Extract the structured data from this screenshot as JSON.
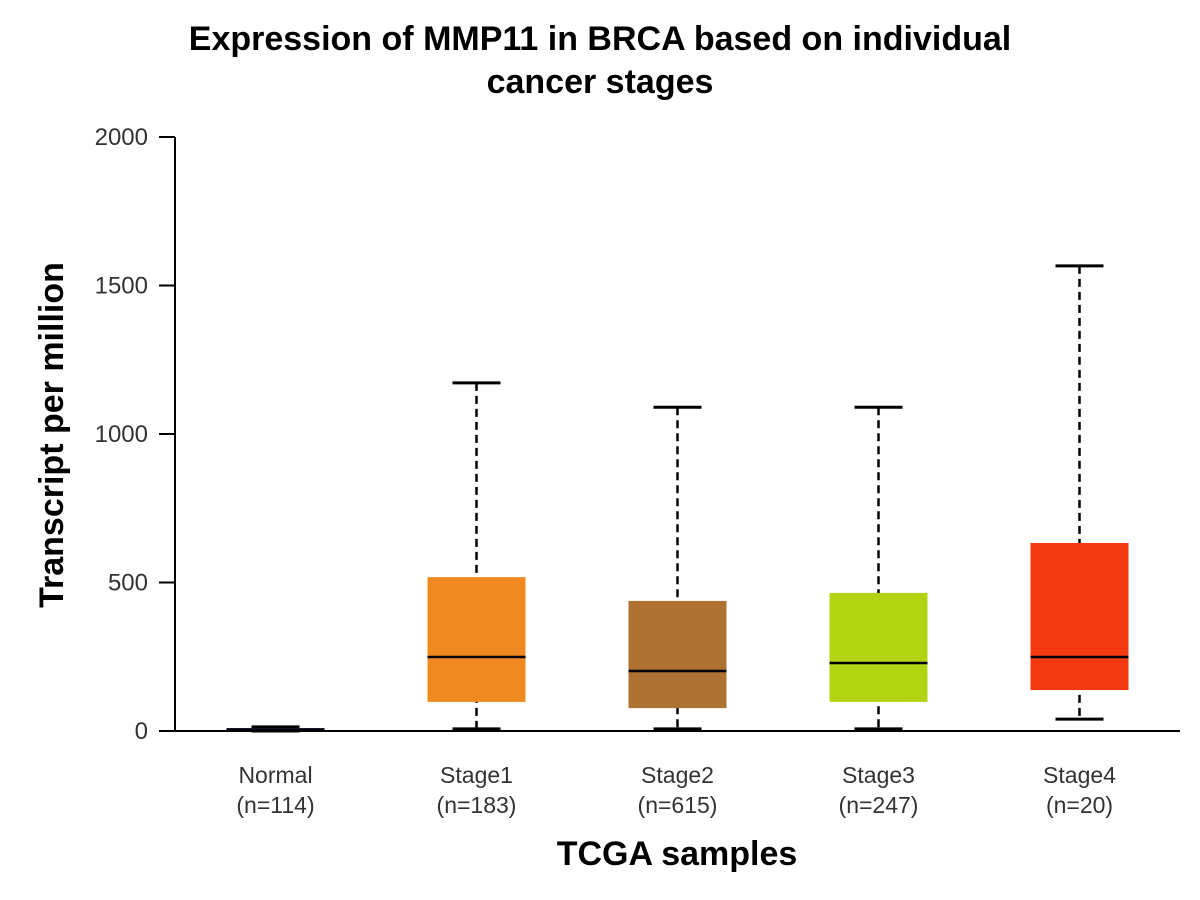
{
  "chart_data": {
    "type": "box",
    "title_lines": [
      "Expression of MMP11 in BRCA based on individual",
      "cancer stages"
    ],
    "xlabel": "TCGA samples",
    "ylabel": "Transcript per million",
    "ylim": [
      0,
      2000
    ],
    "yticks": [
      "0",
      "500",
      "1000",
      "1500",
      "2000"
    ],
    "ytick_values": [
      0,
      500,
      1000,
      1500,
      2000
    ],
    "groups": [
      {
        "name": "Normal",
        "n": "(n=114)",
        "color": "#4b58c8",
        "min": 0,
        "q1": 0,
        "median": 5,
        "q3": 10,
        "max": 14
      },
      {
        "name": "Stage1",
        "n": "(n=183)",
        "color": "#f08a20",
        "min": 7,
        "q1": 98,
        "median": 249,
        "q3": 518,
        "max": 1172
      },
      {
        "name": "Stage2",
        "n": "(n=615)",
        "color": "#ae7232",
        "min": 7,
        "q1": 77,
        "median": 202,
        "q3": 438,
        "max": 1090
      },
      {
        "name": "Stage3",
        "n": "(n=247)",
        "color": "#b2d413",
        "min": 7,
        "q1": 98,
        "median": 229,
        "q3": 465,
        "max": 1090
      },
      {
        "name": "Stage4",
        "n": "(n=20)",
        "color": "#f43a10",
        "min": 40,
        "q1": 138,
        "median": 249,
        "q3": 633,
        "max": 1566
      }
    ]
  }
}
